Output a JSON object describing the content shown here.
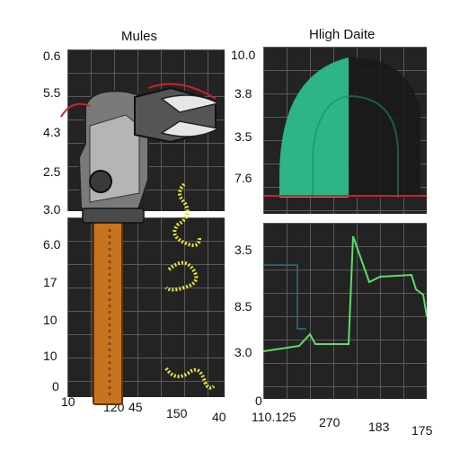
{
  "titles": {
    "left": "Mules",
    "right": "Hligh Daite"
  },
  "left_top_yticks": [
    "0.6",
    "5.5",
    "4.3",
    "2.5",
    "3.0"
  ],
  "left_bottom_yticks": [
    "6.0",
    "17",
    "10",
    "10",
    "0"
  ],
  "left_xticks": [
    "10",
    "120",
    "45",
    "150",
    "40"
  ],
  "right_top_yticks": [
    "10.0",
    "3.8",
    "3.5",
    "7.6"
  ],
  "right_bottom_yticks": [
    "3.5",
    "8.5",
    "3.0",
    "0"
  ],
  "right_xticks": [
    "110.125",
    "270",
    "183",
    "175"
  ],
  "colors": {
    "panel": "#232323",
    "grid": "#5a5a5a",
    "area_fill": "#2db585",
    "line": "#5fdc6a",
    "hammer_handle": "#c8731f",
    "squiggle": "#e7e23a",
    "red_accent": "#d0212a"
  }
}
